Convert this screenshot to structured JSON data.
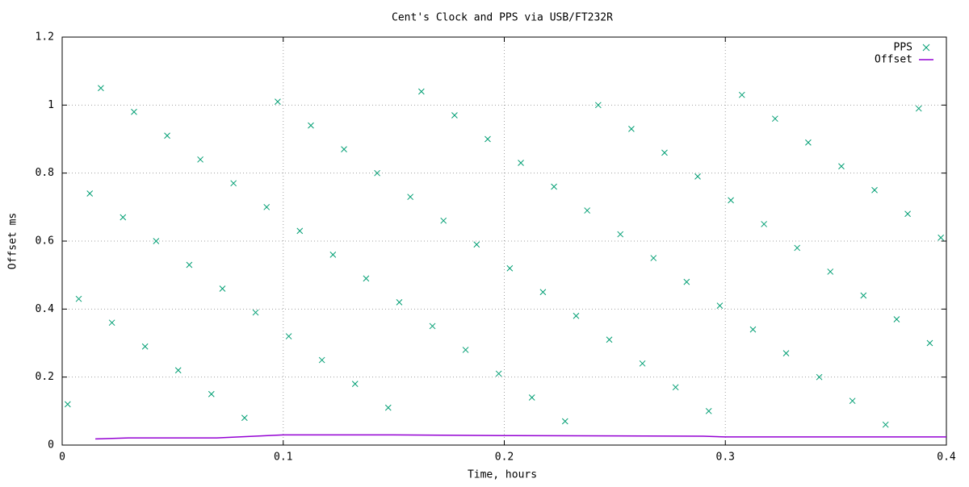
{
  "chart_data": {
    "type": "scatter",
    "title": "Cent's Clock and PPS via USB/FT232R",
    "xlabel": "Time, hours",
    "ylabel": "Offset ms",
    "xlim": [
      0,
      0.4
    ],
    "ylim": [
      0,
      1.2
    ],
    "xticks": [
      0,
      0.1,
      0.2,
      0.3,
      0.4
    ],
    "yticks": [
      0,
      0.2,
      0.4,
      0.6,
      0.8,
      1,
      1.2
    ],
    "grid": true,
    "legend": "top-right",
    "series": [
      {
        "name": "PPS",
        "color": "#009e73",
        "marker": "x",
        "x": [
          0.0025,
          0.0075,
          0.0125,
          0.0175,
          0.0225,
          0.0275,
          0.0325,
          0.0375,
          0.0425,
          0.0475,
          0.0525,
          0.0575,
          0.0625,
          0.0675,
          0.0725,
          0.0775,
          0.0825,
          0.0875,
          0.0925,
          0.0975,
          0.1025,
          0.1075,
          0.1125,
          0.1175,
          0.1225,
          0.1275,
          0.1325,
          0.1375,
          0.1425,
          0.1475,
          0.1525,
          0.1575,
          0.1625,
          0.1675,
          0.1725,
          0.1775,
          0.1825,
          0.1875,
          0.1925,
          0.1975,
          0.2025,
          0.2075,
          0.2125,
          0.2175,
          0.2225,
          0.2275,
          0.2325,
          0.2375,
          0.2425,
          0.2475,
          0.2525,
          0.2575,
          0.2625,
          0.2675,
          0.2725,
          0.2775,
          0.2825,
          0.2875,
          0.2925,
          0.2975,
          0.3025,
          0.3075,
          0.3125,
          0.3175,
          0.3225,
          0.3275,
          0.3325,
          0.3375,
          0.3425,
          0.3475,
          0.3525,
          0.3575,
          0.3625,
          0.3675,
          0.3725,
          0.3775,
          0.3825,
          0.3875,
          0.3925,
          0.3975
        ],
        "values": [
          0.12,
          0.43,
          0.74,
          1.05,
          0.36,
          0.67,
          0.98,
          0.29,
          0.6,
          0.91,
          0.22,
          0.53,
          0.84,
          0.15,
          0.46,
          0.77,
          0.08,
          0.39,
          0.7,
          1.01,
          0.32,
          0.63,
          0.94,
          0.25,
          0.56,
          0.87,
          0.18,
          0.49,
          0.8,
          0.11,
          0.42,
          0.73,
          1.04,
          0.35,
          0.66,
          0.97,
          0.28,
          0.59,
          0.9,
          0.21,
          0.52,
          0.83,
          0.14,
          0.45,
          0.76,
          0.07,
          0.38,
          0.69,
          1.0,
          0.31,
          0.62,
          0.93,
          0.24,
          0.55,
          0.86,
          0.17,
          0.48,
          0.79,
          0.1,
          0.41,
          0.72,
          1.03,
          0.34,
          0.65,
          0.96,
          0.27,
          0.58,
          0.89,
          0.2,
          0.51,
          0.82,
          0.13,
          0.44,
          0.75,
          0.06,
          0.37,
          0.68,
          0.99,
          0.3,
          0.61
        ]
      },
      {
        "name": "Offset",
        "color": "#9400d3",
        "marker": "line",
        "x": [
          0.015,
          0.03,
          0.07,
          0.1,
          0.15,
          0.2,
          0.25,
          0.29,
          0.3,
          0.35,
          0.4
        ],
        "values": [
          0.018,
          0.021,
          0.021,
          0.03,
          0.03,
          0.028,
          0.027,
          0.026,
          0.024,
          0.024,
          0.024
        ]
      }
    ]
  }
}
